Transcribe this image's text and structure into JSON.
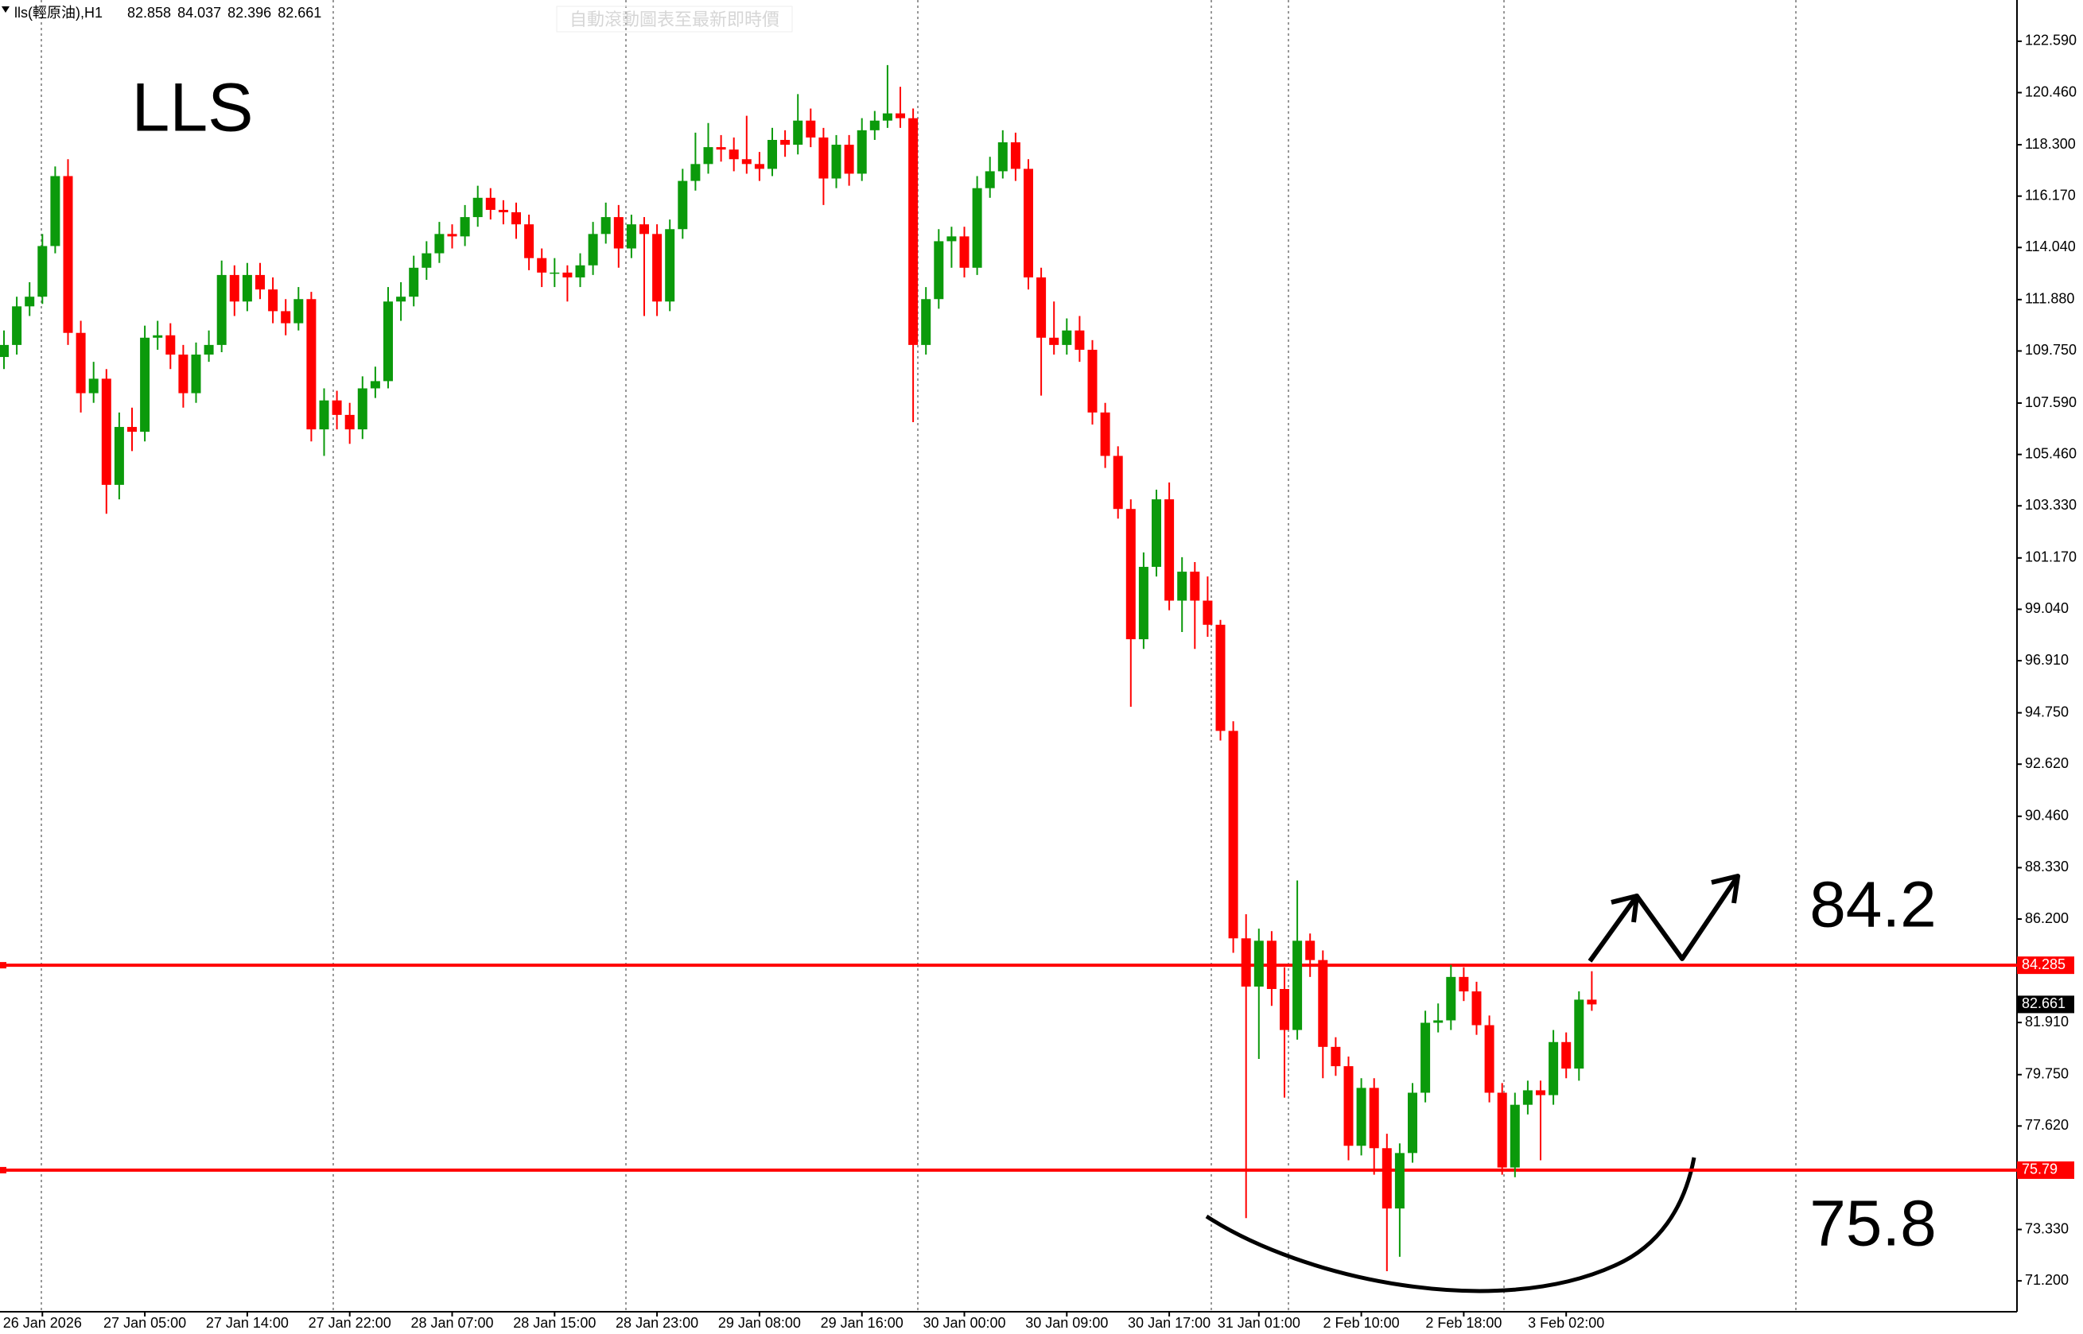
{
  "header": {
    "symbol": "lls(輕原油),H1",
    "button": "自動滾動圖表至最新即時價"
  },
  "chart_data": {
    "type": "candlestick",
    "title": "LLS",
    "categories": [
      null,
      null,
      null,
      "26 Jan 2026",
      null,
      null,
      null,
      null,
      null,
      null,
      null,
      "27 Jan 05:00",
      null,
      null,
      null,
      null,
      null,
      null,
      null,
      "27 Jan 14:00",
      null,
      null,
      null,
      null,
      null,
      null,
      null,
      "27 Jan 22:00",
      null,
      null,
      null,
      null,
      null,
      null,
      null,
      "28 Jan 07:00",
      null,
      null,
      null,
      null,
      null,
      null,
      null,
      "28 Jan 15:00",
      null,
      null,
      null,
      null,
      null,
      null,
      null,
      "28 Jan 23:00",
      null,
      null,
      null,
      null,
      null,
      null,
      null,
      "29 Jan 08:00",
      null,
      null,
      null,
      null,
      null,
      null,
      null,
      "29 Jan 16:00",
      null,
      null,
      null,
      null,
      null,
      null,
      null,
      "30 Jan 00:00",
      null,
      null,
      null,
      null,
      null,
      null,
      null,
      "30 Jan 09:00",
      null,
      null,
      null,
      null,
      null,
      null,
      null,
      "30 Jan 17:00",
      null,
      null,
      null,
      null,
      null,
      null,
      "31 Jan 01:00",
      null,
      null,
      null,
      null,
      null,
      null,
      null,
      "2 Feb 10:00",
      null,
      null,
      null,
      null,
      null,
      null,
      null,
      "2 Feb 18:00",
      null,
      null,
      null,
      null,
      null,
      null,
      null,
      "3 Feb 02:00",
      null,
      null
    ],
    "candles": [
      [
        109.5,
        110.6,
        109.0,
        110.0
      ],
      [
        110.0,
        112.0,
        109.6,
        111.6
      ],
      [
        111.6,
        112.6,
        111.2,
        112.0
      ],
      [
        112.0,
        114.6,
        111.7,
        114.1
      ],
      [
        114.1,
        117.4,
        113.8,
        117.0
      ],
      [
        117.0,
        117.7,
        110.0,
        110.5
      ],
      [
        110.5,
        111.0,
        107.2,
        108.0
      ],
      [
        108.0,
        109.3,
        107.6,
        108.6
      ],
      [
        108.6,
        109.0,
        103.0,
        104.2
      ],
      [
        104.2,
        107.2,
        103.6,
        106.6
      ],
      [
        106.6,
        107.4,
        105.6,
        106.4
      ],
      [
        106.4,
        110.8,
        106.0,
        110.3
      ],
      [
        110.3,
        111.0,
        109.8,
        110.4
      ],
      [
        110.4,
        110.9,
        109.0,
        109.6
      ],
      [
        109.6,
        110.0,
        107.4,
        108.0
      ],
      [
        108.0,
        110.1,
        107.6,
        109.6
      ],
      [
        109.6,
        110.6,
        109.3,
        110.0
      ],
      [
        110.0,
        113.5,
        109.7,
        112.9
      ],
      [
        112.9,
        113.3,
        111.2,
        111.8
      ],
      [
        111.8,
        113.4,
        111.4,
        112.9
      ],
      [
        112.9,
        113.4,
        111.9,
        112.3
      ],
      [
        112.3,
        112.8,
        110.9,
        111.4
      ],
      [
        111.4,
        111.9,
        110.4,
        110.9
      ],
      [
        110.9,
        112.4,
        110.6,
        111.9
      ],
      [
        111.9,
        112.2,
        106.0,
        106.5
      ],
      [
        106.5,
        108.2,
        105.4,
        107.7
      ],
      [
        107.7,
        108.1,
        106.5,
        107.1
      ],
      [
        107.1,
        107.6,
        105.9,
        106.5
      ],
      [
        106.5,
        108.7,
        106.1,
        108.2
      ],
      [
        108.2,
        109.1,
        107.8,
        108.5
      ],
      [
        108.5,
        112.4,
        108.2,
        111.8
      ],
      [
        111.8,
        112.6,
        111.0,
        112.0
      ],
      [
        112.0,
        113.7,
        111.6,
        113.2
      ],
      [
        113.2,
        114.3,
        112.7,
        113.8
      ],
      [
        113.8,
        115.1,
        113.4,
        114.6
      ],
      [
        114.6,
        115.0,
        114.0,
        114.5
      ],
      [
        114.5,
        115.8,
        114.1,
        115.3
      ],
      [
        115.3,
        116.6,
        114.9,
        116.1
      ],
      [
        116.1,
        116.5,
        115.2,
        115.6
      ],
      [
        115.6,
        116.0,
        115.0,
        115.5
      ],
      [
        115.5,
        115.9,
        114.4,
        115.0
      ],
      [
        115.0,
        115.4,
        113.1,
        113.6
      ],
      [
        113.6,
        114.0,
        112.4,
        113.0
      ],
      [
        113.0,
        113.6,
        112.4,
        113.0
      ],
      [
        113.0,
        113.3,
        111.8,
        112.8
      ],
      [
        112.8,
        113.8,
        112.4,
        113.3
      ],
      [
        113.3,
        115.1,
        112.9,
        114.6
      ],
      [
        114.6,
        115.9,
        114.2,
        115.3
      ],
      [
        115.3,
        115.8,
        113.2,
        114.0
      ],
      [
        114.0,
        115.4,
        113.6,
        115.0
      ],
      [
        115.0,
        115.3,
        111.2,
        114.6
      ],
      [
        114.6,
        115.0,
        111.2,
        111.8
      ],
      [
        111.8,
        115.2,
        111.4,
        114.8
      ],
      [
        114.8,
        117.3,
        114.4,
        116.8
      ],
      [
        116.8,
        118.8,
        116.4,
        117.5
      ],
      [
        117.5,
        119.2,
        117.1,
        118.2
      ],
      [
        118.2,
        118.7,
        117.6,
        118.1
      ],
      [
        118.1,
        118.6,
        117.2,
        117.7
      ],
      [
        117.7,
        119.5,
        117.1,
        117.5
      ],
      [
        117.5,
        118.0,
        116.8,
        117.3
      ],
      [
        117.3,
        119.0,
        117.0,
        118.5
      ],
      [
        118.5,
        118.9,
        117.8,
        118.3
      ],
      [
        118.3,
        120.4,
        117.9,
        119.3
      ],
      [
        119.3,
        119.8,
        118.2,
        118.6
      ],
      [
        118.6,
        119.0,
        115.8,
        116.9
      ],
      [
        116.9,
        118.7,
        116.5,
        118.3
      ],
      [
        118.3,
        118.7,
        116.6,
        117.1
      ],
      [
        117.1,
        119.4,
        116.8,
        118.9
      ],
      [
        118.9,
        119.7,
        118.5,
        119.3
      ],
      [
        119.3,
        121.6,
        119.0,
        119.6
      ],
      [
        119.6,
        120.7,
        119.0,
        119.4
      ],
      [
        119.4,
        119.8,
        106.8,
        110.0
      ],
      [
        110.0,
        112.4,
        109.6,
        111.9
      ],
      [
        111.9,
        114.8,
        111.5,
        114.3
      ],
      [
        114.3,
        114.9,
        113.2,
        114.5
      ],
      [
        114.5,
        114.9,
        112.8,
        113.2
      ],
      [
        113.2,
        117.0,
        112.9,
        116.5
      ],
      [
        116.5,
        117.8,
        116.1,
        117.2
      ],
      [
        117.2,
        118.9,
        116.9,
        118.4
      ],
      [
        118.4,
        118.8,
        116.8,
        117.3
      ],
      [
        117.3,
        117.7,
        112.3,
        112.8
      ],
      [
        112.8,
        113.2,
        107.9,
        110.3
      ],
      [
        110.3,
        111.8,
        109.6,
        110.0
      ],
      [
        110.0,
        111.1,
        109.6,
        110.6
      ],
      [
        110.6,
        111.2,
        109.3,
        109.8
      ],
      [
        109.8,
        110.2,
        106.7,
        107.2
      ],
      [
        107.2,
        107.6,
        104.9,
        105.4
      ],
      [
        105.4,
        105.8,
        102.8,
        103.2
      ],
      [
        103.2,
        103.6,
        95.0,
        97.8
      ],
      [
        97.8,
        101.4,
        97.4,
        100.8
      ],
      [
        100.8,
        104.0,
        100.4,
        103.6
      ],
      [
        103.6,
        104.3,
        99.0,
        99.4
      ],
      [
        99.4,
        101.2,
        98.1,
        100.6
      ],
      [
        100.6,
        101.0,
        97.4,
        99.4
      ],
      [
        99.4,
        100.4,
        97.9,
        98.4
      ],
      [
        98.4,
        98.6,
        93.6,
        94.0
      ],
      [
        94.0,
        94.4,
        84.8,
        85.4
      ],
      [
        85.4,
        86.4,
        73.8,
        83.4
      ],
      [
        83.4,
        85.8,
        80.4,
        85.3
      ],
      [
        85.3,
        85.7,
        82.6,
        83.3
      ],
      [
        83.3,
        84.2,
        78.8,
        81.6
      ],
      [
        81.6,
        87.8,
        81.2,
        85.3
      ],
      [
        85.3,
        85.6,
        83.8,
        84.5
      ],
      [
        84.5,
        84.9,
        79.6,
        80.9
      ],
      [
        80.9,
        81.3,
        79.7,
        80.1
      ],
      [
        80.1,
        80.5,
        76.2,
        76.8
      ],
      [
        76.8,
        79.6,
        76.4,
        79.2
      ],
      [
        79.2,
        79.6,
        75.6,
        76.7
      ],
      [
        76.7,
        77.3,
        71.6,
        74.2
      ],
      [
        74.2,
        76.9,
        72.2,
        76.5
      ],
      [
        76.5,
        79.4,
        76.1,
        79.0
      ],
      [
        79.0,
        82.4,
        78.6,
        81.9
      ],
      [
        81.9,
        82.7,
        81.5,
        82.0
      ],
      [
        82.0,
        84.3,
        81.6,
        83.8
      ],
      [
        83.8,
        84.2,
        82.8,
        83.2
      ],
      [
        83.2,
        83.6,
        81.4,
        81.8
      ],
      [
        81.8,
        82.2,
        78.6,
        79.0
      ],
      [
        79.0,
        79.4,
        75.6,
        75.9
      ],
      [
        75.9,
        79.0,
        75.5,
        78.5
      ],
      [
        78.5,
        79.5,
        78.1,
        79.1
      ],
      [
        79.1,
        79.5,
        76.2,
        78.9
      ],
      [
        78.9,
        81.6,
        78.5,
        81.1
      ],
      [
        81.1,
        81.5,
        79.6,
        80.0
      ],
      [
        80.0,
        83.2,
        79.5,
        82.858
      ],
      [
        82.858,
        84.037,
        82.396,
        82.661
      ]
    ],
    "up_color": "#0b9a0b",
    "down_color": "#ff0000",
    "ylim": [
      69.92,
      124.3
    ],
    "yticks": [
      {
        "value": 122.59,
        "label": "122.590"
      },
      {
        "value": 120.46,
        "label": "120.460"
      },
      {
        "value": 118.3,
        "label": "118.300"
      },
      {
        "value": 116.17,
        "label": "116.170"
      },
      {
        "value": 114.04,
        "label": "114.040"
      },
      {
        "value": 111.88,
        "label": "111.880"
      },
      {
        "value": 109.75,
        "label": "109.750"
      },
      {
        "value": 107.59,
        "label": "107.590"
      },
      {
        "value": 105.46,
        "label": "105.460"
      },
      {
        "value": 103.33,
        "label": "103.330"
      },
      {
        "value": 101.17,
        "label": "101.170"
      },
      {
        "value": 99.04,
        "label": "99.040"
      },
      {
        "value": 96.91,
        "label": "96.910"
      },
      {
        "value": 94.75,
        "label": "94.750"
      },
      {
        "value": 92.62,
        "label": "92.620"
      },
      {
        "value": 90.46,
        "label": "90.460"
      },
      {
        "value": 88.33,
        "label": "88.330"
      },
      {
        "value": 86.2,
        "label": "86.200"
      },
      {
        "value": 81.91,
        "label": "81.910"
      },
      {
        "value": 79.75,
        "label": "79.750"
      },
      {
        "value": 77.62,
        "label": "77.620"
      },
      {
        "value": 73.33,
        "label": "73.330"
      },
      {
        "value": 71.2,
        "label": "71.200"
      }
    ],
    "levels": [
      {
        "value": 84.285,
        "color": "#ff0000"
      },
      {
        "value": 75.79,
        "color": "#ff0000"
      }
    ],
    "annotations": [
      "84.2",
      "75.8"
    ]
  }
}
